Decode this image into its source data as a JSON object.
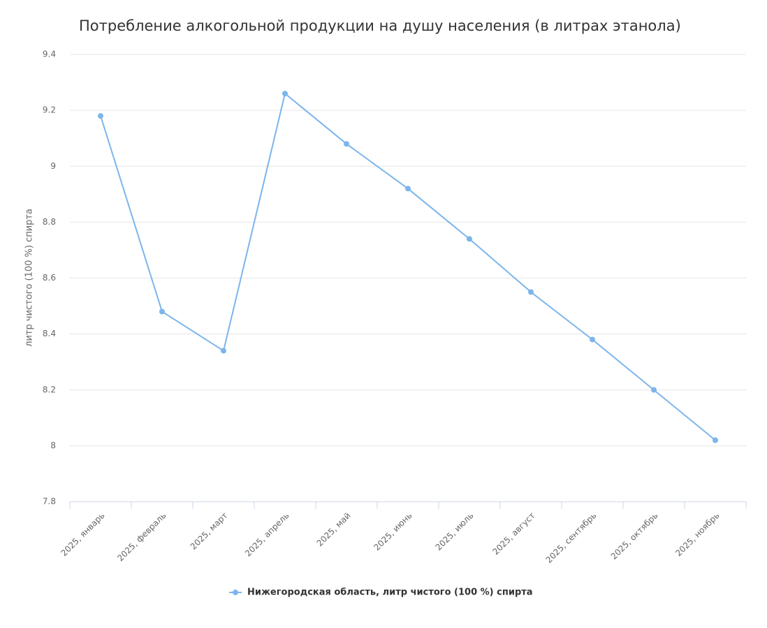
{
  "chart_data": {
    "type": "line",
    "title": "Потребление алкогольной продукции на душу населения (в литрах этанола)",
    "y_axis_label": "литр чистого (100 %) спирта",
    "categories": [
      "2025, январь",
      "2025, февраль",
      "2025, март",
      "2025, апрель",
      "2025, май",
      "2025, июнь",
      "2025, июль",
      "2025, август",
      "2025, сентябрь",
      "2025, октябрь",
      "2025, ноябрь"
    ],
    "series": [
      {
        "name": "Нижегородская область, литр чистого (100 %) спирта",
        "color": "#7cb5ec",
        "values": [
          9.18,
          8.48,
          8.34,
          9.26,
          9.08,
          8.92,
          8.74,
          8.55,
          8.38,
          8.2,
          8.02
        ]
      }
    ],
    "ylim": [
      7.8,
      9.4
    ],
    "yticks": [
      7.8,
      8,
      8.2,
      8.4,
      8.6,
      8.8,
      9,
      9.2,
      9.4
    ],
    "grid": true,
    "legend": "bottom"
  }
}
